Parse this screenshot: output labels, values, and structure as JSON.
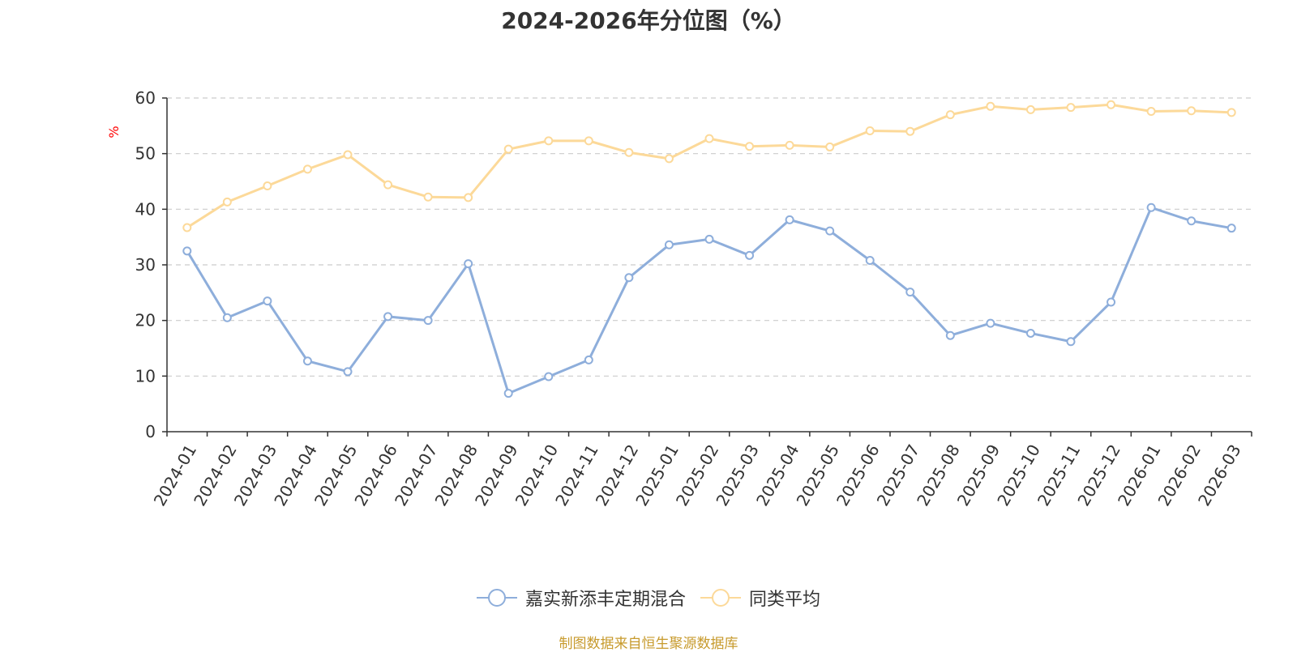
{
  "chart_data": {
    "type": "line",
    "title": "2024-2026年分位图（%）",
    "ylabel": "%",
    "xlabel": "",
    "ylim": [
      0,
      60
    ],
    "yticks": [
      0,
      10,
      20,
      30,
      40,
      50,
      60
    ],
    "grid": true,
    "categories": [
      "2024-01",
      "2024-02",
      "2024-03",
      "2024-04",
      "2024-05",
      "2024-06",
      "2024-07",
      "2024-08",
      "2024-09",
      "2024-10",
      "2024-11",
      "2024-12",
      "2025-01",
      "2025-02",
      "2025-03",
      "2025-04",
      "2025-05",
      "2025-06",
      "2025-07",
      "2025-08",
      "2025-09",
      "2025-10",
      "2025-11",
      "2025-12",
      "2026-01",
      "2026-02",
      "2026-03"
    ],
    "series": [
      {
        "name": "嘉实新添丰定期混合",
        "color": "#8eaedb",
        "values": [
          32.5,
          20.5,
          23.5,
          12.7,
          10.8,
          20.7,
          20.0,
          30.2,
          6.9,
          9.9,
          12.9,
          27.7,
          33.6,
          34.6,
          31.7,
          38.1,
          36.1,
          30.8,
          25.1,
          17.3,
          19.5,
          17.7,
          16.2,
          23.3,
          40.3,
          37.9,
          36.6
        ]
      },
      {
        "name": "同类平均",
        "color": "#fcd999",
        "values": [
          36.7,
          41.3,
          44.2,
          47.2,
          49.8,
          44.4,
          42.2,
          42.1,
          50.8,
          52.3,
          52.3,
          50.2,
          49.1,
          52.7,
          51.3,
          51.5,
          51.2,
          54.1,
          54.0,
          57.0,
          58.5,
          57.9,
          58.3,
          58.8,
          57.6,
          57.7,
          57.4
        ]
      }
    ],
    "legend_position": "bottom"
  },
  "source_note": "制图数据来自恒生聚源数据库"
}
